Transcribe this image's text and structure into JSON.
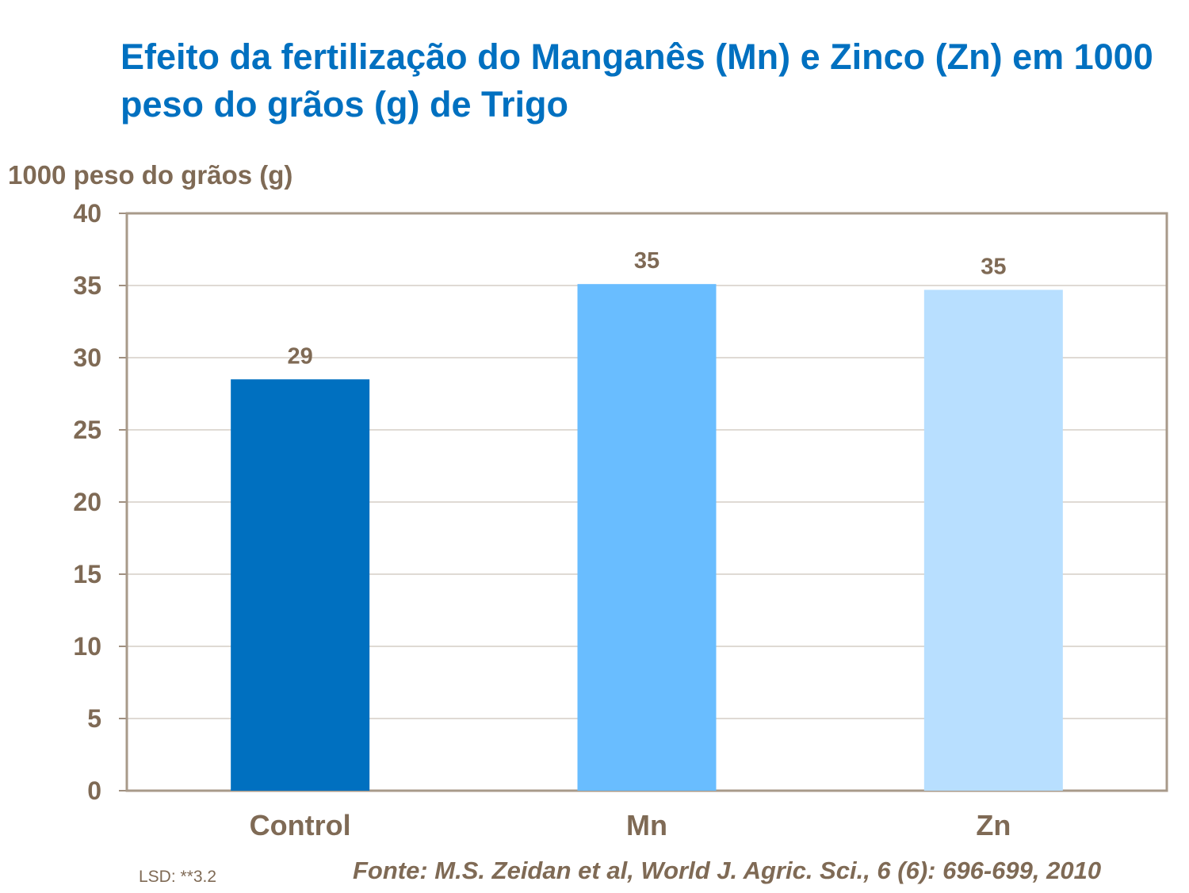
{
  "chart_data": {
    "type": "bar",
    "title": "Efeito da fertilização do Manganês (Mn) e Zinco (Zn) em 1000 peso do grãos (g) de Trigo",
    "ylabel": "1000 peso do grãos (g)",
    "xlabel": "",
    "categories": [
      "Control",
      "Mn",
      "Zn"
    ],
    "values": [
      28.5,
      35.1,
      34.7
    ],
    "data_labels": [
      "29",
      "35",
      "35"
    ],
    "colors": [
      "#0070C0",
      "#69BDFF",
      "#B8DFFF"
    ],
    "ylim": [
      0,
      40
    ],
    "yticks": [
      "0",
      "5",
      "10",
      "15",
      "20",
      "25",
      "30",
      "35",
      "40"
    ],
    "grid": true,
    "legend": "none"
  },
  "notes": {
    "lsd": "LSD: **3.2",
    "source": "Fonte: M.S. Zeidan et al, World J. Agric. Sci., 6 (6): 696-699, 2010"
  }
}
